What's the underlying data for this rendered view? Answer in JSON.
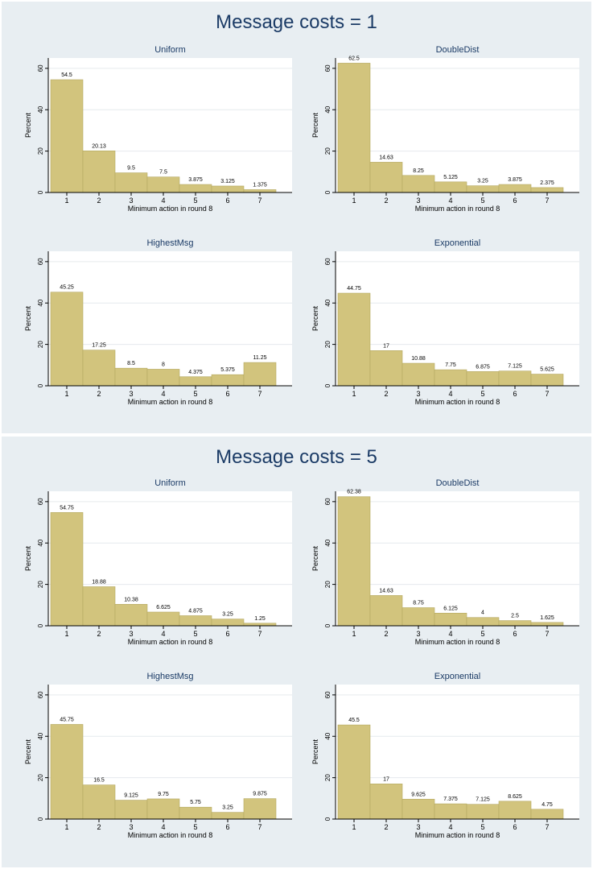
{
  "panels": [
    {
      "title": "Message costs = 1",
      "charts": [
        {
          "title": "Uniform",
          "values": [
            54.5,
            20.13,
            9.5,
            7.5,
            3.875,
            3.125,
            1.375
          ],
          "labels": [
            "54.5",
            "20.13",
            "9.5",
            "7.5",
            "3.875",
            "3.125",
            "1.375"
          ]
        },
        {
          "title": "DoubleDist",
          "values": [
            62.5,
            14.63,
            8.25,
            5.125,
            3.25,
            3.875,
            2.375
          ],
          "labels": [
            "62.5",
            "14.63",
            "8.25",
            "5.125",
            "3.25",
            "3.875",
            "2.375"
          ]
        },
        {
          "title": "HighestMsg",
          "values": [
            45.25,
            17.25,
            8.5,
            8,
            4.375,
            5.375,
            11.25
          ],
          "labels": [
            "45.25",
            "17.25",
            "8.5",
            "8",
            "4.375",
            "5.375",
            "11.25"
          ]
        },
        {
          "title": "Exponential",
          "values": [
            44.75,
            17,
            10.88,
            7.75,
            6.875,
            7.125,
            5.625
          ],
          "labels": [
            "44.75",
            "17",
            "10.88",
            "7.75",
            "6.875",
            "7.125",
            "5.625"
          ]
        }
      ]
    },
    {
      "title": "Message costs = 5",
      "charts": [
        {
          "title": "Uniform",
          "values": [
            54.75,
            18.88,
            10.38,
            6.625,
            4.875,
            3.25,
            1.25
          ],
          "labels": [
            "54.75",
            "18.88",
            "10.38",
            "6.625",
            "4.875",
            "3.25",
            "1.25"
          ]
        },
        {
          "title": "DoubleDist",
          "values": [
            62.38,
            14.63,
            8.75,
            6.125,
            4,
            2.5,
            1.625
          ],
          "labels": [
            "62.38",
            "14.63",
            "8.75",
            "6.125",
            "4",
            "2.5",
            "1.625"
          ]
        },
        {
          "title": "HighestMsg",
          "values": [
            45.75,
            16.5,
            9.125,
            9.75,
            5.75,
            3.25,
            9.875
          ],
          "labels": [
            "45.75",
            "16.5",
            "9.125",
            "9.75",
            "5.75",
            "3.25",
            "9.875"
          ]
        },
        {
          "title": "Exponential",
          "values": [
            45.5,
            17,
            9.625,
            7.375,
            7.125,
            8.625,
            4.75
          ],
          "labels": [
            "45.5",
            "17",
            "9.625",
            "7.375",
            "7.125",
            "8.625",
            "4.75"
          ]
        }
      ]
    }
  ],
  "chart_data": [
    {
      "type": "bar",
      "title": "Uniform",
      "panel": "Message costs = 1",
      "categories": [
        "1",
        "2",
        "3",
        "4",
        "5",
        "6",
        "7"
      ],
      "values": [
        54.5,
        20.13,
        9.5,
        7.5,
        3.875,
        3.125,
        1.375
      ],
      "xlabel": "Minimum action in round 8",
      "ylabel": "Percent",
      "ylim": [
        0,
        65
      ],
      "yticks": [
        0,
        20,
        40,
        60
      ]
    },
    {
      "type": "bar",
      "title": "DoubleDist",
      "panel": "Message costs = 1",
      "categories": [
        "1",
        "2",
        "3",
        "4",
        "5",
        "6",
        "7"
      ],
      "values": [
        62.5,
        14.63,
        8.25,
        5.125,
        3.25,
        3.875,
        2.375
      ],
      "xlabel": "Minimum action in round 8",
      "ylabel": "Percent",
      "ylim": [
        0,
        65
      ],
      "yticks": [
        0,
        20,
        40,
        60
      ]
    },
    {
      "type": "bar",
      "title": "HighestMsg",
      "panel": "Message costs = 1",
      "categories": [
        "1",
        "2",
        "3",
        "4",
        "5",
        "6",
        "7"
      ],
      "values": [
        45.25,
        17.25,
        8.5,
        8,
        4.375,
        5.375,
        11.25
      ],
      "xlabel": "Minimum action in round 8",
      "ylabel": "Percent",
      "ylim": [
        0,
        65
      ],
      "yticks": [
        0,
        20,
        40,
        60
      ]
    },
    {
      "type": "bar",
      "title": "Exponential",
      "panel": "Message costs = 1",
      "categories": [
        "1",
        "2",
        "3",
        "4",
        "5",
        "6",
        "7"
      ],
      "values": [
        44.75,
        17,
        10.88,
        7.75,
        6.875,
        7.125,
        5.625
      ],
      "xlabel": "Minimum action in round 8",
      "ylabel": "Percent",
      "ylim": [
        0,
        65
      ],
      "yticks": [
        0,
        20,
        40,
        60
      ]
    },
    {
      "type": "bar",
      "title": "Uniform",
      "panel": "Message costs = 5",
      "categories": [
        "1",
        "2",
        "3",
        "4",
        "5",
        "6",
        "7"
      ],
      "values": [
        54.75,
        18.88,
        10.38,
        6.625,
        4.875,
        3.25,
        1.25
      ],
      "xlabel": "Minimum action in round 8",
      "ylabel": "Percent",
      "ylim": [
        0,
        65
      ],
      "yticks": [
        0,
        20,
        40,
        60
      ]
    },
    {
      "type": "bar",
      "title": "DoubleDist",
      "panel": "Message costs = 5",
      "categories": [
        "1",
        "2",
        "3",
        "4",
        "5",
        "6",
        "7"
      ],
      "values": [
        62.38,
        14.63,
        8.75,
        6.125,
        4,
        2.5,
        1.625
      ],
      "xlabel": "Minimum action in round 8",
      "ylabel": "Percent",
      "ylim": [
        0,
        65
      ],
      "yticks": [
        0,
        20,
        40,
        60
      ]
    },
    {
      "type": "bar",
      "title": "HighestMsg",
      "panel": "Message costs = 5",
      "categories": [
        "1",
        "2",
        "3",
        "4",
        "5",
        "6",
        "7"
      ],
      "values": [
        45.75,
        16.5,
        9.125,
        9.75,
        5.75,
        3.25,
        9.875
      ],
      "xlabel": "Minimum action in round 8",
      "ylabel": "Percent",
      "ylim": [
        0,
        65
      ],
      "yticks": [
        0,
        20,
        40,
        60
      ]
    },
    {
      "type": "bar",
      "title": "Exponential",
      "panel": "Message costs = 5",
      "categories": [
        "1",
        "2",
        "3",
        "4",
        "5",
        "6",
        "7"
      ],
      "values": [
        45.5,
        17,
        9.625,
        7.375,
        7.125,
        8.625,
        4.75
      ],
      "xlabel": "Minimum action in round 8",
      "ylabel": "Percent",
      "ylim": [
        0,
        65
      ],
      "yticks": [
        0,
        20,
        40,
        60
      ]
    }
  ],
  "axes": {
    "categories": [
      "1",
      "2",
      "3",
      "4",
      "5",
      "6",
      "7"
    ],
    "yticks": [
      0,
      20,
      40,
      60
    ],
    "ymax": 65,
    "xlabel": "Minimum action in round 8",
    "ylabel": "Percent"
  },
  "colors": {
    "panel_bg": "#e8eef2",
    "plot_bg": "#ffffff",
    "bar_fill": "#d2c47d",
    "bar_stroke": "#b4a861",
    "grid": "#e6eaee",
    "title_text": "#1b3b66",
    "text": "#000000"
  }
}
